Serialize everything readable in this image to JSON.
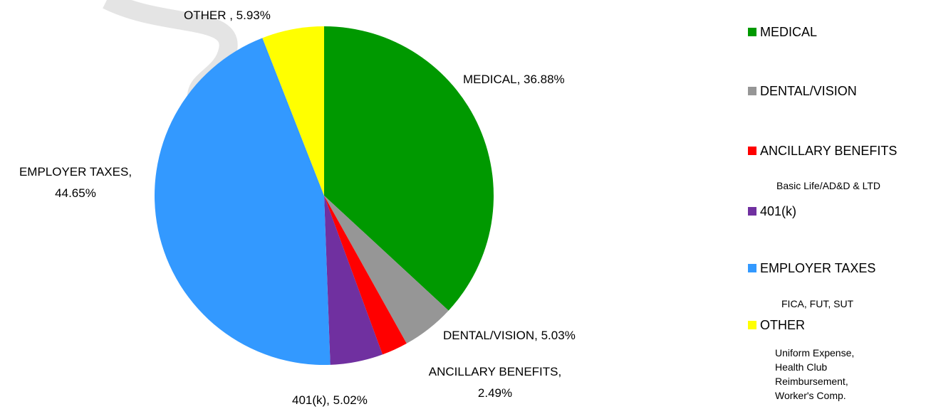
{
  "chart_data": {
    "type": "pie",
    "categories": [
      "MEDICAL",
      "DENTAL/VISION",
      "ANCILLARY BENEFITS",
      "401(k)",
      "EMPLOYER TAXES",
      "OTHER"
    ],
    "values": [
      36.88,
      5.03,
      2.49,
      5.02,
      44.65,
      5.93
    ],
    "value_labels": [
      "MEDICAL, 36.88%",
      "DENTAL/VISION, 5.03%",
      "ANCILLARY BENEFITS, 2.49%",
      "401(k), 5.02%",
      "EMPLOYER TAXES, 44.65%",
      "OTHER , 5.93%"
    ],
    "colors": [
      "#009900",
      "#969696",
      "#ff0000",
      "#7030a0",
      "#3399ff",
      "#ffff00"
    ],
    "legend_notes": [
      null,
      null,
      "Basic Life/AD&D & LTD",
      null,
      "FICA, FUT, SUT",
      "Uniform Expense, Health Club Reimbursement, Worker's Comp."
    ],
    "legend_position": "right"
  }
}
